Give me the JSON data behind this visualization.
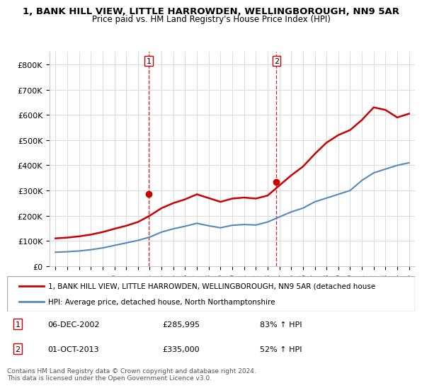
{
  "title_line1": "1, BANK HILL VIEW, LITTLE HARROWDEN, WELLINGBOROUGH, NN9 5AR",
  "title_line2": "Price paid vs. HM Land Registry's House Price Index (HPI)",
  "legend_line1": "1, BANK HILL VIEW, LITTLE HARROWDEN, WELLINGBOROUGH, NN9 5AR (detached house",
  "legend_line2": "HPI: Average price, detached house, North Northamptonshire",
  "footnote": "Contains HM Land Registry data © Crown copyright and database right 2024.\nThis data is licensed under the Open Government Licence v3.0.",
  "sale1_date": "06-DEC-2002",
  "sale1_price": "£285,995",
  "sale1_hpi": "83% ↑ HPI",
  "sale2_date": "01-OCT-2013",
  "sale2_price": "£335,000",
  "sale2_hpi": "52% ↑ HPI",
  "red_color": "#cc0000",
  "blue_color": "#5588bb",
  "background_color": "#ffffff",
  "grid_color": "#dddddd",
  "sale_marker_color": "#cc0000",
  "dashed_line_color": "#cc0000",
  "years": [
    1995,
    1996,
    1997,
    1998,
    1999,
    2000,
    2001,
    2002,
    2003,
    2004,
    2005,
    2006,
    2007,
    2008,
    2009,
    2010,
    2011,
    2012,
    2013,
    2014,
    2015,
    2016,
    2017,
    2018,
    2019,
    2020,
    2021,
    2022,
    2023,
    2024,
    2025
  ],
  "hpi_values": [
    55000,
    57000,
    60000,
    65000,
    72000,
    82000,
    92000,
    102000,
    115000,
    135000,
    148000,
    158000,
    170000,
    160000,
    152000,
    162000,
    165000,
    163000,
    175000,
    195000,
    215000,
    230000,
    255000,
    270000,
    285000,
    300000,
    340000,
    370000,
    385000,
    400000,
    410000
  ],
  "red_values": [
    110000,
    113000,
    118000,
    125000,
    135000,
    148000,
    160000,
    175000,
    200000,
    230000,
    250000,
    265000,
    285000,
    270000,
    255000,
    268000,
    272000,
    268000,
    280000,
    320000,
    360000,
    395000,
    445000,
    490000,
    520000,
    540000,
    580000,
    630000,
    620000,
    590000,
    605000
  ],
  "sale1_x": 2002.92,
  "sale1_y": 285995,
  "sale2_x": 2013.75,
  "sale2_y": 335000,
  "ylim": [
    0,
    850000
  ],
  "yticks": [
    0,
    100000,
    200000,
    300000,
    400000,
    500000,
    600000,
    700000,
    800000
  ],
  "ytick_labels": [
    "£0",
    "£100K",
    "£200K",
    "£300K",
    "£400K",
    "£500K",
    "£600K",
    "£700K",
    "£800K"
  ],
  "xlim": [
    1994.5,
    2025.5
  ],
  "xticks": [
    1995,
    1996,
    1997,
    1998,
    1999,
    2000,
    2001,
    2002,
    2003,
    2004,
    2005,
    2006,
    2007,
    2008,
    2009,
    2010,
    2011,
    2012,
    2013,
    2014,
    2015,
    2016,
    2017,
    2018,
    2019,
    2020,
    2021,
    2022,
    2023,
    2024,
    2025
  ]
}
